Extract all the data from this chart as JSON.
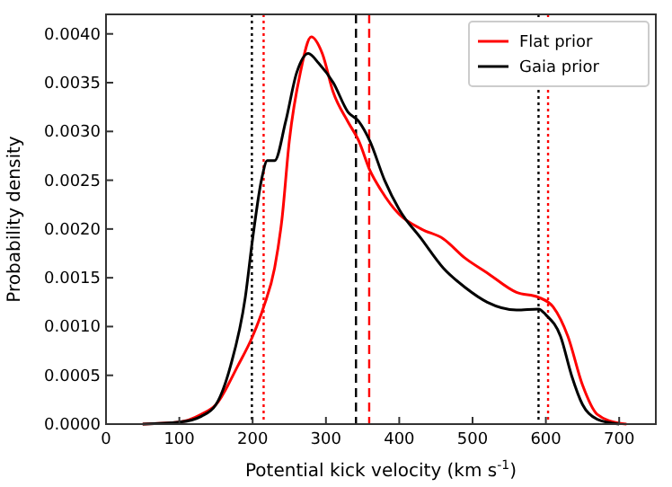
{
  "chart_data": {
    "type": "line",
    "xlabel": "Potential kick velocity (km s$^{-1}$)",
    "ylabel": "Probability density",
    "xlim": [
      0,
      750
    ],
    "ylim": [
      0,
      0.0042
    ],
    "xticks": [
      0,
      100,
      200,
      300,
      400,
      500,
      600,
      700
    ],
    "yticks": [
      {
        "value": 0,
        "label": "0.0000"
      },
      {
        "value": 0.0005,
        "label": "0.0005"
      },
      {
        "value": 0.001,
        "label": "0.0010"
      },
      {
        "value": 0.0015,
        "label": "0.0015"
      },
      {
        "value": 0.002,
        "label": "0.0020"
      },
      {
        "value": 0.0025,
        "label": "0.0025"
      },
      {
        "value": 0.003,
        "label": "0.0030"
      },
      {
        "value": 0.0035,
        "label": "0.0035"
      },
      {
        "value": 0.004,
        "label": "0.0040"
      }
    ],
    "legend": "top right",
    "grid": false,
    "marker": "none",
    "line_style": "solid",
    "series": [
      {
        "name": "Flat prior",
        "color": "#ff0000",
        "x": [
          50,
          100,
          130,
          150,
          180,
          200,
          215,
          230,
          240,
          250,
          265,
          280,
          295,
          310,
          330,
          345,
          360,
          375,
          400,
          430,
          460,
          490,
          520,
          560,
          590,
          610,
          630,
          650,
          670,
          700,
          710
        ],
        "values": [
          0,
          2e-05,
          0.0001,
          0.0002,
          0.0006,
          0.0009,
          0.0012,
          0.0016,
          0.0021,
          0.0029,
          0.0036,
          0.00397,
          0.0038,
          0.0034,
          0.0031,
          0.0029,
          0.0026,
          0.0024,
          0.00215,
          0.002,
          0.0019,
          0.0017,
          0.00155,
          0.00135,
          0.0013,
          0.0012,
          0.0009,
          0.0004,
          0.0001,
          1e-05,
          0
        ]
      },
      {
        "name": "Gaia prior",
        "color": "#000000",
        "x": [
          50,
          100,
          130,
          150,
          170,
          190,
          200,
          212,
          220,
          230,
          245,
          260,
          276,
          290,
          310,
          330,
          345,
          360,
          380,
          400,
          430,
          460,
          490,
          520,
          560,
          590,
          600,
          620,
          635,
          650,
          670,
          700
        ],
        "values": [
          0,
          2e-05,
          8e-05,
          0.0002,
          0.0006,
          0.0013,
          0.0019,
          0.0025,
          0.0027,
          0.0027,
          0.0031,
          0.0036,
          0.0038,
          0.0037,
          0.0035,
          0.0032,
          0.0031,
          0.0029,
          0.0025,
          0.0022,
          0.0019,
          0.0016,
          0.0014,
          0.00125,
          0.00117,
          0.00118,
          0.00112,
          0.0009,
          0.0005,
          0.0002,
          5e-05,
          0
        ]
      }
    ],
    "ref_lines": [
      {
        "axis": "x",
        "value": 199,
        "color": "#000000",
        "line_style": "dotted"
      },
      {
        "axis": "x",
        "value": 215,
        "color": "#ff0000",
        "line_style": "dotted"
      },
      {
        "axis": "x",
        "value": 341,
        "color": "#000000",
        "line_style": "dashed"
      },
      {
        "axis": "x",
        "value": 359,
        "color": "#ff0000",
        "line_style": "dashed"
      },
      {
        "axis": "x",
        "value": 590,
        "color": "#000000",
        "line_style": "dotted"
      },
      {
        "axis": "x",
        "value": 603,
        "color": "#ff0000",
        "line_style": "dotted"
      }
    ]
  }
}
